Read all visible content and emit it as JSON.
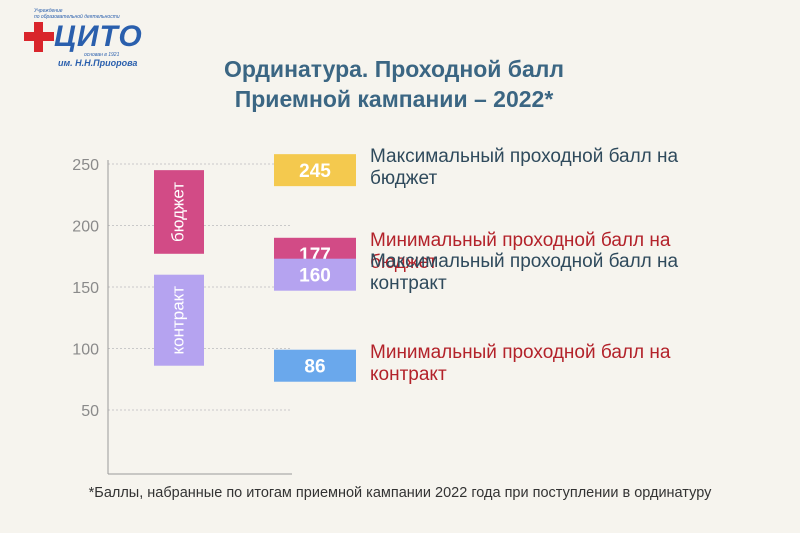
{
  "logo": {
    "line1": "Учреждение",
    "line2": "по образовательной деятельности",
    "word": "ЦИТО",
    "since": "основан в 1921",
    "named": "им. Н.Н.Приорова"
  },
  "title": {
    "line1": "Ординатура. Проходной балл",
    "line2": "Приемной кампании – 2022*"
  },
  "colors": {
    "max_budget": "#f4c94e",
    "min_budget": "#d24b86",
    "max_contract": "#b5a3f0",
    "min_contract": "#6aa8ec",
    "dark_text": "#2f4a5c",
    "red_text": "#b3222a"
  },
  "chart_data": {
    "type": "bar",
    "yticks": [
      50,
      100,
      150,
      200,
      250
    ],
    "ylim": [
      15,
      250
    ],
    "grid": true,
    "ranges": [
      {
        "label": "бюджет",
        "min": 177,
        "max": 245,
        "color": "#d24b86"
      },
      {
        "label": "контракт",
        "min": 86,
        "max": 160,
        "color": "#b5a3f0"
      }
    ],
    "markers": [
      {
        "value": 245,
        "label": "Максимальный проходной балл на бюджет",
        "line1": "Максимальный проходной балл на",
        "line2": "бюджет",
        "color": "#f4c94e",
        "text_color": "#2f4a5c"
      },
      {
        "value": 177,
        "label": "Минимальный проходной балл на бюджет",
        "line1": "Минимальный проходной балл на",
        "line2": "бюджет",
        "color": "#d24b86",
        "text_color": "#b3222a"
      },
      {
        "value": 160,
        "label": "Максимальный проходной балл на контракт",
        "line1": "Максимальный проходной балл на",
        "line2": "контракт",
        "color": "#b5a3f0",
        "text_color": "#2f4a5c"
      },
      {
        "value": 86,
        "label": "Минимальный проходной балл на контракт",
        "line1": "Минимальный проходной балл на",
        "line2": "контракт",
        "color": "#6aa8ec",
        "text_color": "#b3222a"
      }
    ]
  },
  "footnote": "*Баллы, набранные по итогам приемной кампании 2022 года при поступлении в ординатуру"
}
